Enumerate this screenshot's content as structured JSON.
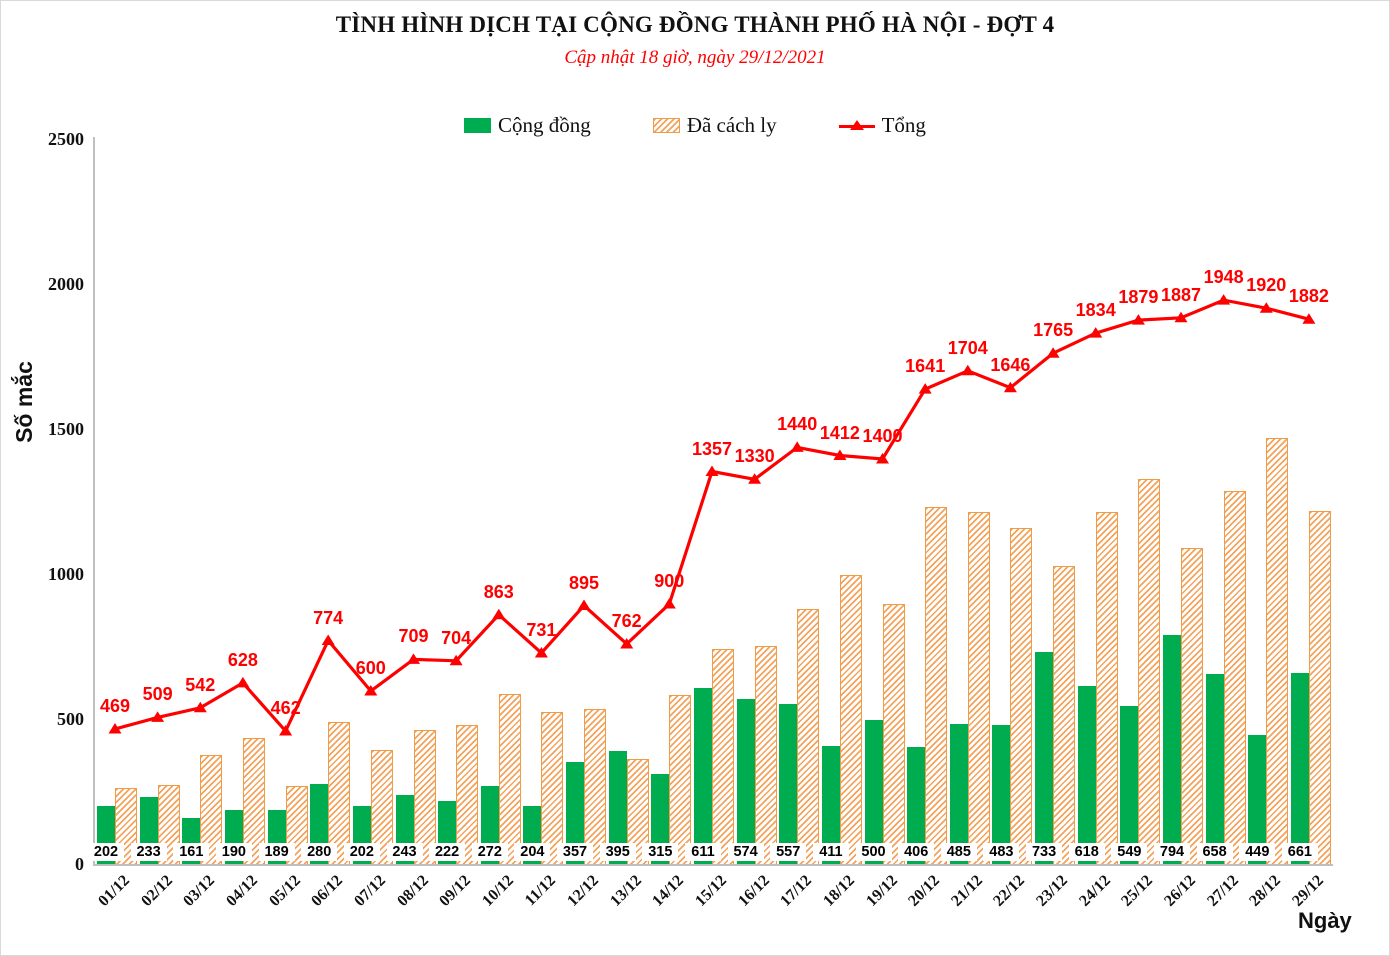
{
  "title": "TÌNH HÌNH DỊCH TẠI CỘNG ĐỒNG THÀNH PHỐ HÀ NỘI - ĐỢT 4",
  "subtitle": "Cập nhật 18 giờ, ngày 29/12/2021",
  "colors": {
    "community_green": "#00AC50",
    "quarantine_orange": "#EF9C44",
    "total_red": "#FF0000",
    "axis_gray": "#BFBFBF"
  },
  "legend": [
    {
      "label": "Cộng đồng",
      "swatch": "green-solid-swatch"
    },
    {
      "label": "Đã cách ly",
      "swatch": "orange-hatch-swatch"
    },
    {
      "label": "Tổng",
      "swatch": "red-line-triangle-swatch"
    }
  ],
  "axes": {
    "y_title": "Số mắc",
    "x_title": "Ngày",
    "y_ticks": [
      "0",
      "500",
      "1000",
      "1500",
      "2000",
      "2500"
    ]
  },
  "chart_data": {
    "type": "bar+line",
    "title": "TÌNH HÌNH DỊCH TẠI CỘNG ĐỒNG THÀNH PHỐ HÀ NỘI - ĐỢT 4",
    "ylabel": "Số mắc",
    "xlabel": "Ngày",
    "ylim": [
      0,
      2500
    ],
    "grid": false,
    "legend_position": "top",
    "categories": [
      "01/12",
      "02/12",
      "03/12",
      "04/12",
      "05/12",
      "06/12",
      "07/12",
      "08/12",
      "09/12",
      "10/12",
      "11/12",
      "12/12",
      "13/12",
      "14/12",
      "15/12",
      "16/12",
      "17/12",
      "18/12",
      "19/12",
      "20/12",
      "21/12",
      "22/12",
      "23/12",
      "24/12",
      "25/12",
      "26/12",
      "27/12",
      "28/12",
      "29/12"
    ],
    "series": [
      {
        "name": "Cộng đồng",
        "type": "bar",
        "style": "solid-green",
        "labels_shown": true,
        "values": [
          202,
          233,
          161,
          190,
          189,
          280,
          202,
          243,
          222,
          272,
          204,
          357,
          395,
          315,
          611,
          574,
          557,
          411,
          500,
          406,
          485,
          483,
          733,
          618,
          549,
          794,
          658,
          449,
          661
        ]
      },
      {
        "name": "Đã cách ly",
        "type": "bar",
        "style": "orange-hatched",
        "labels_shown": false,
        "values": [
          267,
          276,
          381,
          438,
          273,
          494,
          398,
          466,
          482,
          591,
          527,
          538,
          367,
          585,
          746,
          756,
          883,
          1001,
          900,
          1235,
          1219,
          1163,
          1032,
          1216,
          1330,
          1093,
          1290,
          1471,
          1221
        ]
      },
      {
        "name": "Tổng",
        "type": "line",
        "style": "red-triangle-markers",
        "labels_shown": true,
        "values": [
          469,
          509,
          542,
          628,
          462,
          774,
          600,
          709,
          704,
          863,
          731,
          895,
          762,
          900,
          1357,
          1330,
          1440,
          1412,
          1400,
          1641,
          1704,
          1646,
          1765,
          1834,
          1879,
          1887,
          1948,
          1920,
          1882
        ]
      }
    ]
  }
}
